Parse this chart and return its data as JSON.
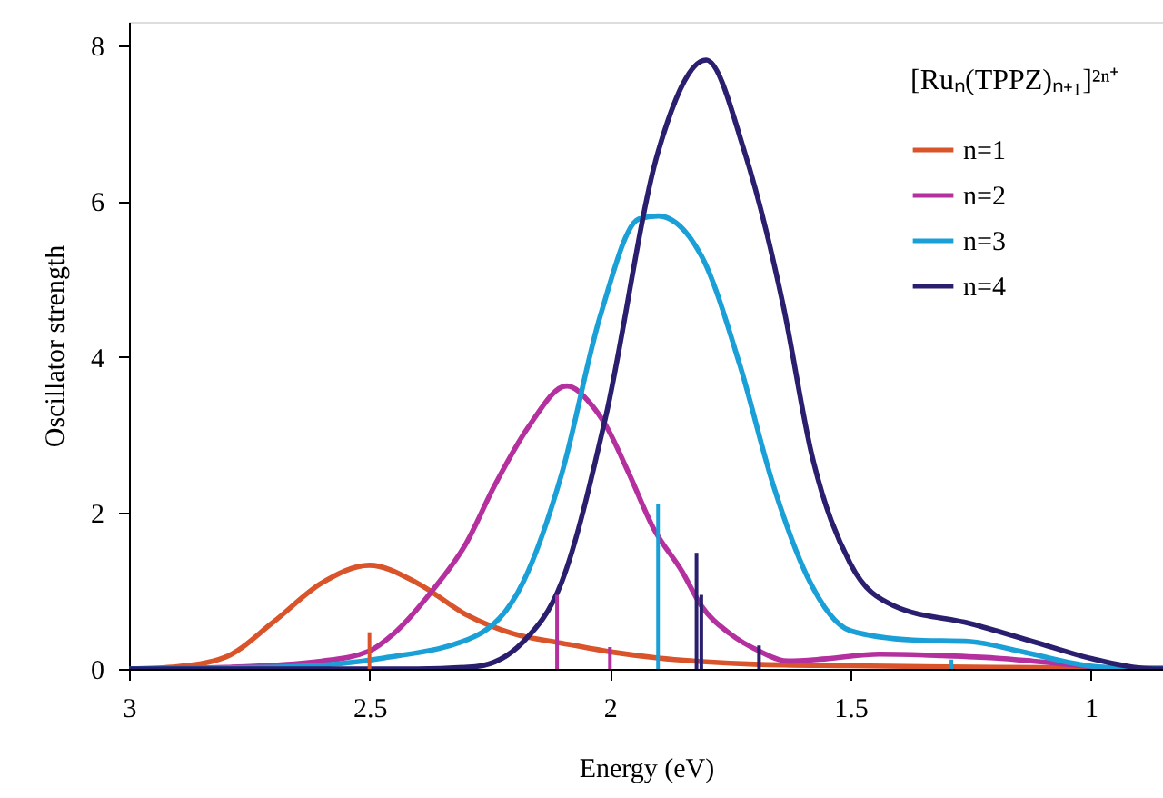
{
  "chart_data": {
    "type": "line",
    "xlabel": "Energy (eV)",
    "ylabel": "Oscillator strength",
    "legend_title": "[Ruₙ(TPPZ)ₙ₊₁]²ⁿ⁺",
    "xlim": [
      3,
      0.85
    ],
    "xticks": [
      3,
      2.5,
      2,
      1.5,
      1
    ],
    "ylim": [
      0,
      8.3
    ],
    "yticks": [
      0,
      2,
      4,
      6,
      8
    ],
    "grid": false,
    "legend": "top right",
    "marker": "none",
    "line_style": "solid",
    "series": [
      {
        "name": "n=1",
        "color": "#d9542a",
        "x": [
          3,
          2.9,
          2.8,
          2.7,
          2.6,
          2.5,
          2.4,
          2.3,
          2.2,
          2.1,
          2.0,
          1.9,
          1.8,
          1.7,
          1.5,
          1.2,
          0.85
        ],
        "values": [
          0,
          0.03,
          0.15,
          0.6,
          1.1,
          1.33,
          1.1,
          0.7,
          0.45,
          0.33,
          0.22,
          0.14,
          0.09,
          0.06,
          0.04,
          0.02,
          0.01
        ]
      },
      {
        "name": "n=2",
        "color": "#b5309f",
        "x": [
          3,
          2.8,
          2.6,
          2.5,
          2.45,
          2.37,
          2.3,
          2.24,
          2.17,
          2.09,
          2.04,
          2.01,
          1.96,
          1.91,
          1.85,
          1.81,
          1.75,
          1.69,
          1.63,
          1.55,
          1.44,
          1.31,
          1.2,
          1.12,
          1.0,
          0.93,
          0.85
        ],
        "values": [
          0,
          0.02,
          0.1,
          0.23,
          0.45,
          1.0,
          1.6,
          2.35,
          3.1,
          3.63,
          3.4,
          3.14,
          2.5,
          1.81,
          1.25,
          0.81,
          0.45,
          0.23,
          0.1,
          0.13,
          0.19,
          0.17,
          0.14,
          0.1,
          0.03,
          0,
          0
        ]
      },
      {
        "name": "n=3",
        "color": "#1aa0d6",
        "x": [
          3,
          2.66,
          2.47,
          2.28,
          2.18,
          2.1,
          2.02,
          1.94,
          1.9,
          1.81,
          1.73,
          1.66,
          1.59,
          1.5,
          1.37,
          1.25,
          1.15,
          0.99,
          0.85
        ],
        "values": [
          0,
          0.03,
          0.14,
          0.42,
          1.12,
          2.51,
          4.53,
          5.77,
          5.81,
          5.3,
          3.9,
          2.35,
          1.19,
          0.49,
          0.37,
          0.35,
          0.23,
          0.03,
          0
        ]
      },
      {
        "name": "n=4",
        "color": "#2a1f6e",
        "x": [
          3,
          2.4,
          2.28,
          2.18,
          2.1,
          2.01,
          1.9,
          1.8,
          1.72,
          1.64,
          1.58,
          1.5,
          1.41,
          1.25,
          1.12,
          0.99,
          0.87,
          0.85
        ],
        "values": [
          0,
          0,
          0.03,
          0.35,
          1.12,
          3.2,
          6.63,
          7.81,
          6.63,
          4.67,
          2.74,
          1.35,
          0.81,
          0.58,
          0.35,
          0.12,
          0,
          0
        ]
      },
      {
        "type": "bar",
        "color": "#d9542a",
        "x": [
          2.5
        ],
        "values": [
          0.47
        ]
      },
      {
        "type": "bar",
        "color": "#b5309f",
        "x": [
          2.11,
          2.0
        ],
        "values": [
          0.95,
          0.28
        ]
      },
      {
        "type": "bar",
        "color": "#1aa0d6",
        "x": [
          1.9,
          1.29
        ],
        "values": [
          2.12,
          0.12
        ]
      },
      {
        "type": "bar",
        "color": "#2a1f6e",
        "x": [
          1.82,
          1.81,
          1.69
        ],
        "values": [
          1.49,
          0.95,
          0.3
        ]
      }
    ]
  }
}
